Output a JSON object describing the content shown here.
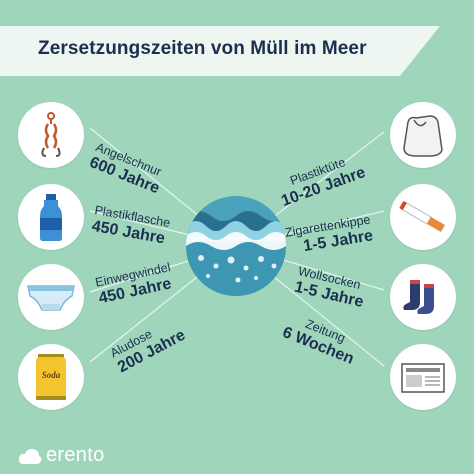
{
  "title": "Zersetzungszeiten von Müll im Meer",
  "items": [
    {
      "name": "Angelschnur",
      "time": "600 Jahre",
      "icon": "fishing-line-icon"
    },
    {
      "name": "Plastikflasche",
      "time": "450 Jahre",
      "icon": "plastic-bottle-icon"
    },
    {
      "name": "Einwegwindel",
      "time": "450 Jahre",
      "icon": "diaper-icon"
    },
    {
      "name": "Aludose",
      "time": "200 Jahre",
      "icon": "aluminium-can-icon"
    },
    {
      "name": "Plastiktüte",
      "time": "10-20 Jahre",
      "icon": "plastic-bag-icon"
    },
    {
      "name": "Zigarettenkippe",
      "time": "1-5 Jahre",
      "icon": "cigarette-butt-icon"
    },
    {
      "name": "Wollsocken",
      "time": "1-5 Jahre",
      "icon": "wool-socks-icon"
    },
    {
      "name": "Zeitung",
      "time": "6 Wochen",
      "icon": "newspaper-icon"
    }
  ],
  "can_text": "Soda",
  "brand": {
    "name": "erento",
    "icon": "cloud-icon"
  },
  "colors": {
    "background": "#9fd6bb",
    "title_banner": "#eef6f1",
    "text": "#1c2f4f",
    "water": "#4aa3bc",
    "ray": "#ffffff"
  }
}
